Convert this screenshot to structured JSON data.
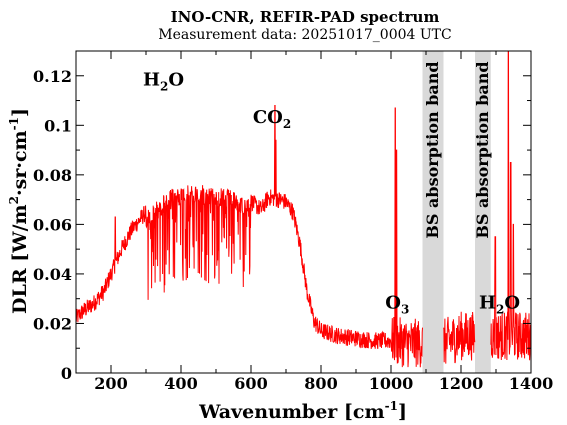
{
  "chart_data": {
    "type": "line",
    "title": "INO-CNR, REFIR-PAD spectrum",
    "subtitle": "Measurement data: 20251017_0004 UTC",
    "xlabel": {
      "main": "Wavenumber [cm",
      "sup": "-1",
      "tail": "]"
    },
    "ylabel": {
      "main": "DLR [W/m",
      "sup1": "2",
      "mid": "·sr·cm",
      "sup2": "-1",
      "tail": "]"
    },
    "xlim": [
      100,
      1400
    ],
    "ylim": [
      0,
      0.13
    ],
    "x_ticks": [
      {
        "value": 200,
        "label": "200"
      },
      {
        "value": 400,
        "label": "400"
      },
      {
        "value": 600,
        "label": "600"
      },
      {
        "value": 800,
        "label": "800"
      },
      {
        "value": 1000,
        "label": "1000"
      },
      {
        "value": 1200,
        "label": "1200"
      },
      {
        "value": 1400,
        "label": "1400"
      }
    ],
    "y_ticks": [
      {
        "value": 0,
        "label": "0"
      },
      {
        "value": 0.02,
        "label": "0.02"
      },
      {
        "value": 0.04,
        "label": "0.04"
      },
      {
        "value": 0.06,
        "label": "0.06"
      },
      {
        "value": 0.08,
        "label": "0.08"
      },
      {
        "value": 0.1,
        "label": "0.1"
      },
      {
        "value": 0.12,
        "label": "0.12"
      }
    ],
    "line_color": "#ff0000",
    "band_color": "#d9d9d9",
    "bands": [
      {
        "label": "BS absorption band",
        "x_start": 1090,
        "x_end": 1150
      },
      {
        "label": "BS absorption band",
        "x_start": 1240,
        "x_end": 1285
      }
    ],
    "annotations": [
      {
        "name": "h2o-left-annotation",
        "base": "H",
        "sub": "2",
        "rest": "O",
        "x": 350,
        "y": 0.116
      },
      {
        "name": "co2-annotation",
        "base": "CO",
        "sub": "2",
        "rest": "",
        "x": 660,
        "y": 0.101
      },
      {
        "name": "o3-annotation",
        "base": "O",
        "sub": "3",
        "rest": "",
        "x": 1018,
        "y": 0.026
      },
      {
        "name": "h2o-right-annotation",
        "base": "H",
        "sub": "2",
        "rest": "O",
        "x": 1310,
        "y": 0.026
      }
    ],
    "envelope": {
      "x": [
        100,
        120,
        150,
        180,
        200,
        230,
        260,
        300,
        340,
        380,
        420,
        460,
        500,
        540,
        580,
        610,
        630,
        650,
        680,
        700,
        720,
        740,
        760,
        780,
        800,
        850,
        900,
        950,
        1000,
        1050,
        1090,
        1150,
        1200,
        1240,
        1285,
        1320,
        1360,
        1400
      ],
      "y": [
        0.022,
        0.025,
        0.028,
        0.033,
        0.04,
        0.05,
        0.058,
        0.065,
        0.071,
        0.075,
        0.076,
        0.076,
        0.075,
        0.074,
        0.072,
        0.068,
        0.066,
        0.071,
        0.07,
        0.069,
        0.065,
        0.052,
        0.033,
        0.021,
        0.017,
        0.015,
        0.014,
        0.013,
        0.013,
        0.012,
        0.012,
        0.012,
        0.015,
        0.015,
        0.015,
        0.015,
        0.015,
        0.015
      ]
    },
    "peaks": [
      {
        "x": 212,
        "y": 0.063
      },
      {
        "x": 668,
        "y": 0.108
      },
      {
        "x": 671,
        "y": 0.094
      },
      {
        "x": 1012,
        "y": 0.107
      },
      {
        "x": 1016,
        "y": 0.09
      },
      {
        "x": 1298,
        "y": 0.055
      },
      {
        "x": 1335,
        "y": 0.13
      },
      {
        "x": 1342,
        "y": 0.085
      },
      {
        "x": 1350,
        "y": 0.06
      }
    ]
  }
}
